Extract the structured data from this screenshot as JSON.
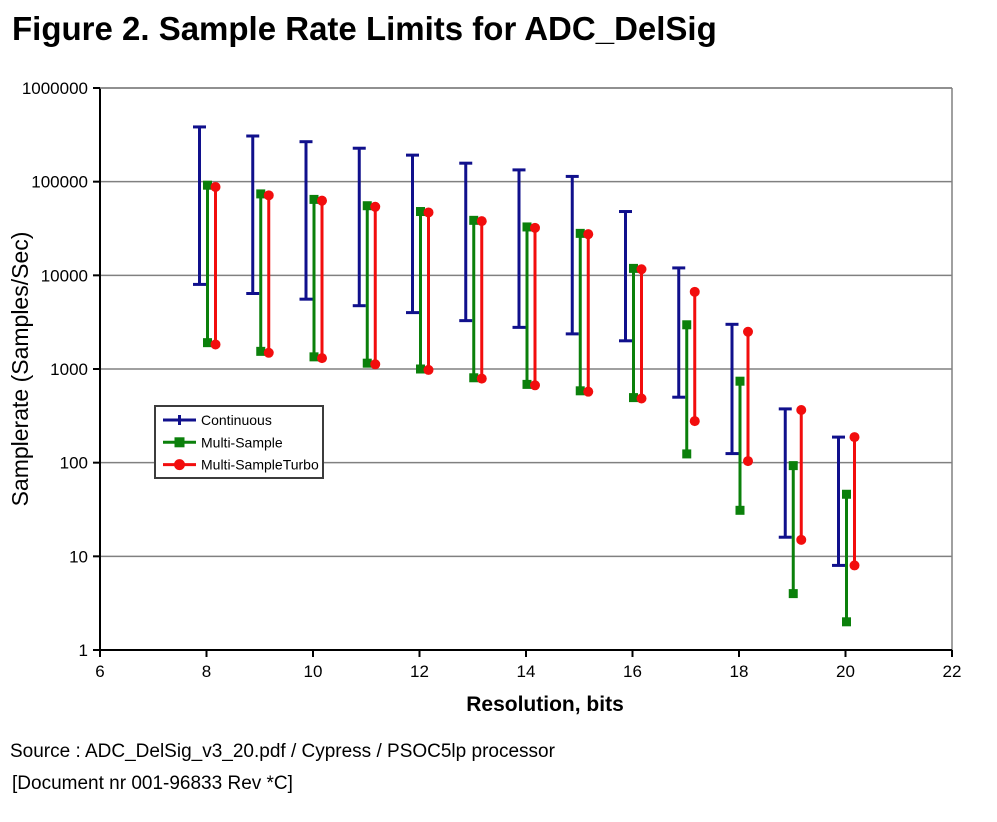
{
  "title": "Figure 2. Sample Rate Limits for ADC_DelSig",
  "source": {
    "line1": "Source : ADC_DelSig_v3_20.pdf / Cypress / PSOC5lp processor",
    "line2": "[Document nr 001-96833 Rev *C]"
  },
  "colors": {
    "grid": "#808080",
    "frame": "#808080",
    "axis": "#000000",
    "legend_border": "#3c3c3c",
    "background": "#ffffff",
    "continuous": "#10108c",
    "multi_sample": "#0b800b",
    "multi_sample_turbo": "#f20d0d"
  },
  "chart_data": {
    "type": "bar",
    "subtype": "vertical-range-bars",
    "title": "Figure 2. Sample Rate Limits for ADC_DelSig",
    "xlabel": "Resolution, bits",
    "ylabel": "Samplerate (Samples/Sec)",
    "xlim": [
      6,
      22
    ],
    "xticks": [
      6,
      8,
      10,
      12,
      14,
      16,
      18,
      20,
      22
    ],
    "yscale": "log",
    "ylim": [
      1,
      1000000
    ],
    "yticks": [
      1,
      10,
      100,
      1000,
      10000,
      100000,
      1000000
    ],
    "grid": true,
    "legend_position": "inside-middle-left",
    "categories": [
      8,
      9,
      10,
      11,
      12,
      13,
      14,
      15,
      16,
      17,
      18,
      19,
      20
    ],
    "series": [
      {
        "name": "Continuous",
        "color": "#10108c",
        "marker": "cap",
        "ranges": [
          [
            8000,
            384000
          ],
          [
            6400,
            307200
          ],
          [
            5566,
            267130
          ],
          [
            4741,
            227555
          ],
          [
            4000,
            192000
          ],
          [
            3283,
            157538
          ],
          [
            2783,
            133565
          ],
          [
            2371,
            113777
          ],
          [
            2000,
            48000
          ],
          [
            500,
            12000
          ],
          [
            125,
            3000
          ],
          [
            16,
            375
          ],
          [
            8,
            187.5
          ]
        ]
      },
      {
        "name": "Multi-Sample",
        "color": "#0b800b",
        "marker": "square",
        "ranges": [
          [
            1911,
            91701
          ],
          [
            1543,
            74024
          ],
          [
            1348,
            64673
          ],
          [
            1154,
            55351
          ],
          [
            1000,
            48000
          ],
          [
            806,
            38647
          ],
          [
            685,
            32855
          ],
          [
            585,
            28054
          ],
          [
            495,
            11861
          ],
          [
            124,
            2965
          ],
          [
            31,
            741
          ],
          [
            4,
            93
          ],
          [
            2,
            46
          ]
        ]
      },
      {
        "name": "Multi-SampleTurbo",
        "color": "#f20d0d",
        "marker": "circle",
        "ranges": [
          [
            1829,
            87771
          ],
          [
            1489,
            71441
          ],
          [
            1307,
            62693
          ],
          [
            1123,
            53894
          ],
          [
            978,
            46900
          ],
          [
            790,
            37925
          ],
          [
            670,
            32155
          ],
          [
            573,
            27517
          ],
          [
            484,
            11608
          ],
          [
            278,
            6667
          ],
          [
            104,
            2500
          ],
          [
            15,
            365
          ],
          [
            8,
            187.5
          ]
        ]
      }
    ]
  }
}
